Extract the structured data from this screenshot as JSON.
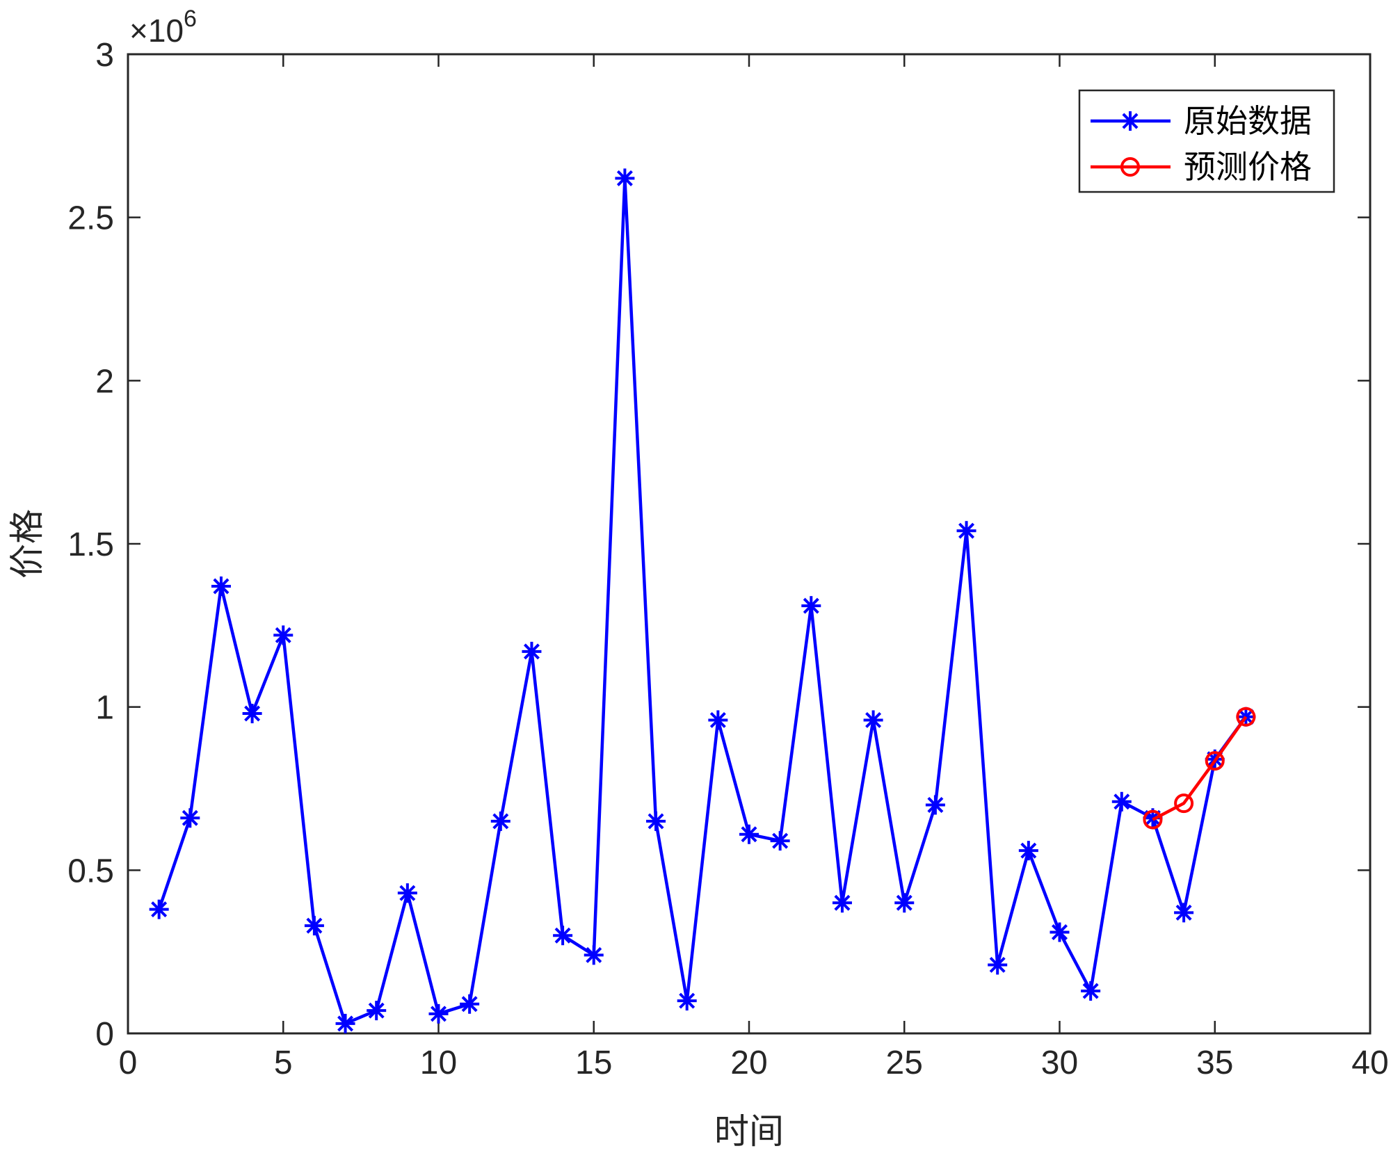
{
  "chart_data": {
    "type": "line",
    "xlabel": "时间",
    "ylabel": "价格",
    "xlim": [
      0,
      40
    ],
    "ylim": [
      0,
      3000000
    ],
    "x_ticks": [
      "0",
      "5",
      "10",
      "15",
      "20",
      "25",
      "30",
      "35",
      "40"
    ],
    "y_ticks": [
      "0",
      "0.5",
      "1",
      "1.5",
      "2",
      "2.5",
      "3"
    ],
    "y_exponent": {
      "base": "×10",
      "power": "6"
    },
    "grid": false,
    "legend_position": "top-right",
    "series": [
      {
        "name": "原始数据",
        "color": "#0000ff",
        "marker": "asterisk",
        "x": [
          1,
          2,
          3,
          4,
          5,
          6,
          7,
          8,
          9,
          10,
          11,
          12,
          13,
          14,
          15,
          16,
          17,
          18,
          19,
          20,
          21,
          22,
          23,
          24,
          25,
          26,
          27,
          28,
          29,
          30,
          31,
          32,
          33,
          34,
          35,
          36
        ],
        "values": [
          380000,
          660000,
          1370000,
          980000,
          1220000,
          330000,
          30000,
          70000,
          430000,
          60000,
          90000,
          650000,
          1170000,
          300000,
          240000,
          2620000,
          650000,
          100000,
          960000,
          610000,
          590000,
          1310000,
          400000,
          960000,
          400000,
          700000,
          1540000,
          210000,
          560000,
          310000,
          130000,
          710000,
          660000,
          370000,
          840000,
          970000
        ]
      },
      {
        "name": "预测价格",
        "color": "#ff0000",
        "marker": "circle",
        "x": [
          33,
          34,
          35,
          36
        ],
        "values": [
          655000,
          705000,
          835000,
          970000
        ]
      }
    ]
  }
}
